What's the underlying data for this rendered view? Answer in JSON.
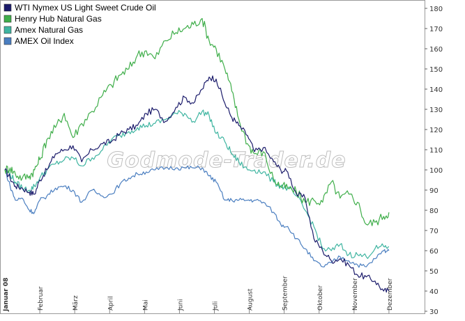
{
  "chart_data": {
    "type": "line",
    "title": "",
    "xlabel": "",
    "ylabel": "",
    "ylim": [
      30,
      180
    ],
    "y_ticks": [
      30,
      40,
      50,
      60,
      70,
      80,
      90,
      100,
      110,
      120,
      130,
      140,
      150,
      160,
      170,
      180
    ],
    "y_axis_side": "right",
    "grid": false,
    "legend_position": "top-left",
    "x_start_label": "Januar 08",
    "x_months": [
      "Februar",
      "März",
      "April",
      "Mai",
      "Juni",
      "Juli",
      "August",
      "September",
      "Oktober",
      "November",
      "Dezember"
    ],
    "watermark": "Godmode-Trader.de",
    "series": [
      {
        "name": "WTI Nymex US Light Sweet Crude Oil",
        "color": "#1b1b6b",
        "x": [
          0,
          0.15,
          0.3,
          0.5,
          0.7,
          0.85,
          1,
          1.2,
          1.45,
          1.7,
          1.95,
          2.2,
          2.5,
          2.8,
          3.05,
          3.3,
          3.55,
          3.8,
          4.05,
          4.3,
          4.6,
          4.9,
          5.15,
          5.4,
          5.65,
          5.85,
          6.05,
          6.3,
          6.5,
          6.7,
          6.95,
          7.15,
          7.4,
          7.7,
          7.9,
          8.1,
          8.35,
          8.6,
          8.85,
          9.1,
          9.35,
          9.6,
          9.85,
          10.1,
          10.35,
          10.6,
          10.85,
          11.0
        ],
        "values": [
          100,
          96,
          92,
          91,
          89,
          88,
          95,
          100,
          108,
          110,
          112,
          104,
          110,
          113,
          114,
          118,
          120,
          122,
          128,
          130,
          124,
          131,
          136,
          133,
          140,
          146,
          145,
          133,
          126,
          122,
          117,
          109,
          111,
          104,
          100,
          99,
          88,
          86,
          66,
          60,
          55,
          56,
          53,
          48,
          47,
          45,
          40,
          40
        ]
      },
      {
        "name": "Henry Hub Natural Gas",
        "color": "#3fae4a",
        "x": [
          0,
          0.15,
          0.3,
          0.5,
          0.7,
          0.85,
          1,
          1.2,
          1.45,
          1.7,
          1.95,
          2.2,
          2.5,
          2.8,
          3.05,
          3.3,
          3.55,
          3.8,
          4.05,
          4.3,
          4.6,
          4.9,
          5.15,
          5.4,
          5.65,
          5.85,
          6.05,
          6.3,
          6.5,
          6.7,
          6.95,
          7.15,
          7.4,
          7.7,
          7.9,
          8.1,
          8.35,
          8.6,
          8.85,
          9.1,
          9.35,
          9.6,
          9.85,
          10.1,
          10.35,
          10.6,
          10.85,
          11.0
        ],
        "values": [
          100,
          101,
          98,
          96,
          97,
          100,
          105,
          115,
          121,
          128,
          116,
          123,
          129,
          137,
          142,
          147,
          150,
          157,
          159,
          155,
          164,
          168,
          170,
          172,
          175,
          164,
          160,
          150,
          139,
          125,
          113,
          108,
          109,
          95,
          92,
          91,
          89,
          84,
          85,
          84,
          94,
          86,
          88,
          84,
          73,
          74,
          77,
          79
        ]
      },
      {
        "name": "Amex Natural Gas",
        "color": "#3fb5a1",
        "x": [
          0,
          0.15,
          0.3,
          0.5,
          0.7,
          0.85,
          1,
          1.2,
          1.45,
          1.7,
          1.95,
          2.2,
          2.5,
          2.8,
          3.05,
          3.3,
          3.55,
          3.8,
          4.05,
          4.3,
          4.6,
          4.9,
          5.15,
          5.4,
          5.65,
          5.85,
          6.05,
          6.3,
          6.5,
          6.7,
          6.95,
          7.15,
          7.4,
          7.7,
          7.9,
          8.1,
          8.35,
          8.6,
          8.85,
          9.1,
          9.35,
          9.6,
          9.85,
          10.1,
          10.35,
          10.6,
          10.85,
          11.0
        ],
        "values": [
          100,
          98,
          94,
          91,
          90,
          92,
          96,
          100,
          103,
          105,
          106,
          102,
          106,
          110,
          115,
          117,
          119,
          121,
          122,
          123,
          125,
          128,
          128,
          124,
          129,
          127,
          118,
          114,
          108,
          104,
          100,
          100,
          99,
          94,
          92,
          91,
          87,
          80,
          72,
          61,
          60,
          63,
          58,
          58,
          57,
          61,
          62,
          62
        ]
      },
      {
        "name": "AMEX Oil Index",
        "color": "#4a7ec0",
        "x": [
          0,
          0.15,
          0.3,
          0.5,
          0.7,
          0.85,
          1,
          1.2,
          1.45,
          1.7,
          1.95,
          2.2,
          2.5,
          2.8,
          3.05,
          3.3,
          3.55,
          3.8,
          4.05,
          4.3,
          4.6,
          4.9,
          5.15,
          5.4,
          5.65,
          5.85,
          6.05,
          6.3,
          6.5,
          6.7,
          6.95,
          7.15,
          7.4,
          7.7,
          7.9,
          8.1,
          8.35,
          8.6,
          8.85,
          9.1,
          9.35,
          9.6,
          9.85,
          10.1,
          10.35,
          10.6,
          10.85,
          11.0
        ],
        "values": [
          100,
          92,
          85,
          86,
          80,
          79,
          85,
          87,
          91,
          92,
          90,
          84,
          90,
          87,
          88,
          93,
          96,
          98,
          99,
          100,
          101,
          101,
          101,
          101,
          101,
          97,
          94,
          85,
          85,
          85,
          85,
          85,
          84,
          79,
          73,
          72,
          66,
          61,
          55,
          52,
          54,
          57,
          55,
          53,
          52,
          56,
          60,
          60
        ]
      }
    ]
  }
}
